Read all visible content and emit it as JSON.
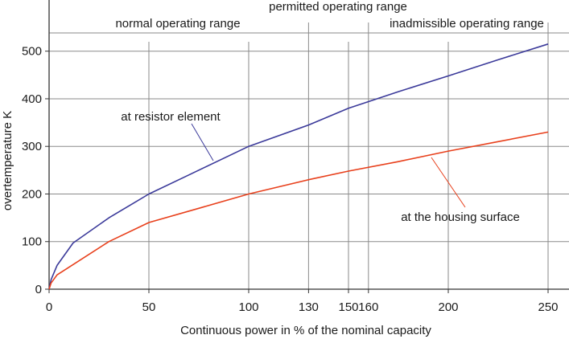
{
  "chart_data": {
    "type": "line",
    "title": "",
    "xlabel": "Continuous power in % of the nominal capacity",
    "ylabel": "overtemperature K",
    "xlim": [
      0,
      250
    ],
    "ylim": [
      0,
      540
    ],
    "x_ticks": [
      0,
      50,
      100,
      130,
      150,
      160,
      200,
      250
    ],
    "y_ticks": [
      0,
      100,
      200,
      300,
      400,
      500
    ],
    "grid": true,
    "series": [
      {
        "name": "at resistor element",
        "color": "#3b3a9a",
        "x": [
          0,
          1,
          4,
          12,
          30,
          50,
          70,
          100,
          130,
          150,
          175,
          200,
          225,
          250
        ],
        "y": [
          0,
          20,
          50,
          97,
          150,
          200,
          240,
          300,
          345,
          380,
          415,
          448,
          482,
          515
        ]
      },
      {
        "name": "at the housing surface",
        "color": "#e8401c",
        "x": [
          0,
          1,
          4,
          30,
          50,
          75,
          100,
          130,
          150,
          175,
          200,
          225,
          250
        ],
        "y": [
          0,
          13,
          30,
          100,
          140,
          170,
          200,
          230,
          248,
          268,
          290,
          310,
          330
        ]
      }
    ],
    "annotations": {
      "resistor_label": "at resistor element",
      "housing_label": "at the housing surface",
      "range_normal": "normal operating range",
      "range_permitted": "permitted operating range",
      "range_inadmissible": "inadmissible operating range"
    }
  }
}
